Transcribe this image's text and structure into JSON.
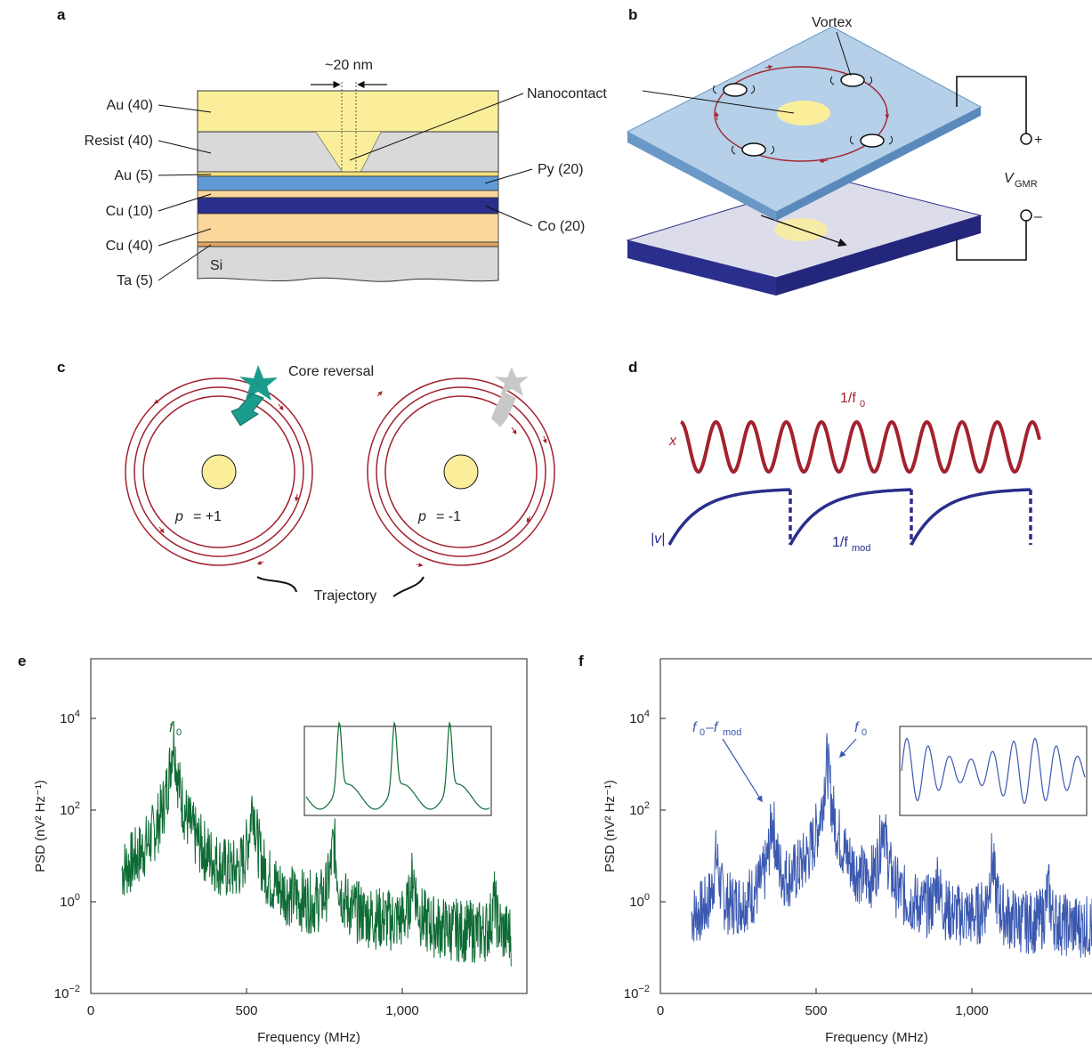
{
  "panels": {
    "a": {
      "letter": "a",
      "gap_label": "~20 nm",
      "nanocontact_label": "Nanocontact",
      "si_label": "Si",
      "layers_left": [
        "Au (40)",
        "Resist (40)",
        "Au (5)",
        "Cu (10)",
        "Cu (40)",
        "Ta (5)"
      ],
      "layers_right": [
        "Py (20)",
        "Co (20)"
      ]
    },
    "b": {
      "letter": "b",
      "vortex_label": "Vortex",
      "voltage_symbol": "V",
      "voltage_subscript": "GMR",
      "plus": "+",
      "minus": "–"
    },
    "c": {
      "letter": "c",
      "core_reversal_label": "Core reversal",
      "p_symbol": "p",
      "p_left": "= +1",
      "p_right": "= -1",
      "trajectory_label": "Trajectory"
    },
    "d": {
      "letter": "d",
      "period_label": "1/f",
      "period_sub": "0",
      "x_label": "x",
      "v_label": "|v|",
      "mod_label": "1/f",
      "mod_sub": "mod"
    },
    "e": {
      "letter": "e",
      "ylabel": "PSD (nV² Hz⁻¹)",
      "xlabel": "Frequency (MHz)",
      "xticks": [
        "0",
        "500",
        "1,000"
      ],
      "peak_label": "f",
      "peak_sub": "0",
      "color": "#0e6b34"
    },
    "f": {
      "letter": "f",
      "ylabel": "PSD (nV² Hz⁻¹)",
      "xlabel": "Frequency (MHz)",
      "xticks": [
        "0",
        "500",
        "1,000"
      ],
      "peak_label": "f",
      "peak_sub": "0",
      "side_label": "f",
      "side_sub": "0",
      "side_minus": "–f",
      "side_sub2": "mod",
      "color": "#3b59b0"
    }
  },
  "chart_data": [
    {
      "type": "line",
      "panel": "e",
      "xlabel": "Frequency (MHz)",
      "ylabel": "PSD (nV² Hz⁻¹)",
      "yscale": "log",
      "xlim": [
        0,
        1400
      ],
      "ylim": [
        0.01,
        200000
      ],
      "xticks": [
        0,
        500,
        1000
      ],
      "yticks": [
        0.01,
        1,
        100,
        10000
      ],
      "peaks": [
        {
          "x": 265,
          "y": 5000
        },
        {
          "x": 520,
          "y": 200
        },
        {
          "x": 780,
          "y": 25
        },
        {
          "x": 1035,
          "y": 5
        },
        {
          "x": 1295,
          "y": 1.2
        }
      ],
      "range": [
        100,
        1350
      ],
      "noise_floor": 0.08
    },
    {
      "type": "line",
      "panel": "f",
      "xlabel": "Frequency (MHz)",
      "ylabel": "PSD (nV² Hz⁻¹)",
      "yscale": "log",
      "xlim": [
        0,
        1400
      ],
      "ylim": [
        0.01,
        200000
      ],
      "xticks": [
        0,
        500,
        1000
      ],
      "yticks": [
        0.01,
        1,
        100,
        10000
      ],
      "peaks": [
        {
          "x": 180,
          "y": 12
        },
        {
          "x": 360,
          "y": 80
        },
        {
          "x": 535,
          "y": 1500
        },
        {
          "x": 715,
          "y": 80
        },
        {
          "x": 890,
          "y": 4
        },
        {
          "x": 1065,
          "y": 10
        },
        {
          "x": 1245,
          "y": 2
        }
      ],
      "range": [
        100,
        1400
      ],
      "noise_floor": 0.3
    }
  ]
}
